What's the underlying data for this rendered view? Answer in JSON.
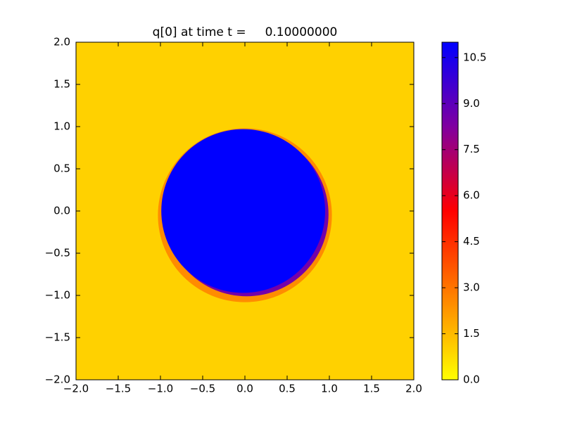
{
  "chart_data": {
    "type": "field",
    "title": "q[0] at time t =     0.10000000",
    "xlim": [
      -2,
      2
    ],
    "ylim": [
      -2,
      2
    ],
    "xticks": [
      {
        "value": -2,
        "label": "−2.0"
      },
      {
        "value": -1.5,
        "label": "−1.5"
      },
      {
        "value": -1,
        "label": "−1.0"
      },
      {
        "value": -0.5,
        "label": "−0.5"
      },
      {
        "value": 0,
        "label": "0.0"
      },
      0.5,
      {
        "value": 1,
        "label": "1.0"
      },
      1.5,
      {
        "value": 2,
        "label": "2.0"
      }
    ],
    "yticks": [
      {
        "value": -2,
        "label": "−2.0"
      },
      {
        "value": -1.5,
        "label": "−1.5"
      },
      {
        "value": -1,
        "label": "−1.0"
      },
      {
        "value": -0.5,
        "label": "−0.5"
      },
      {
        "value": 0,
        "label": "0.0"
      },
      0.5,
      {
        "value": 1,
        "label": "1.0"
      },
      1.5,
      {
        "value": 2,
        "label": "2.0"
      }
    ],
    "colormap": [
      "#ffff00",
      "#ff8000",
      "#ff0000",
      "#8000a0",
      "#0000ff"
    ],
    "clim": [
      0,
      11
    ],
    "cticks": [
      {
        "value": 0,
        "label": "0.0"
      },
      1.5,
      {
        "value": 3,
        "label": "3.0"
      },
      4.5,
      {
        "value": 6,
        "label": "6.0"
      },
      7.5,
      {
        "value": 9,
        "label": "9.0"
      },
      10.5
    ],
    "background_value": 1,
    "regions": [
      {
        "center": [
          0,
          -0.05
        ],
        "radius": 1.03,
        "value": 2.5
      },
      {
        "center": [
          0.02,
          -0.04
        ],
        "radius": 0.97,
        "value": 8.5
      },
      {
        "center": [
          -0.02,
          0
        ],
        "radius": 0.97,
        "value": 11
      }
    ]
  }
}
